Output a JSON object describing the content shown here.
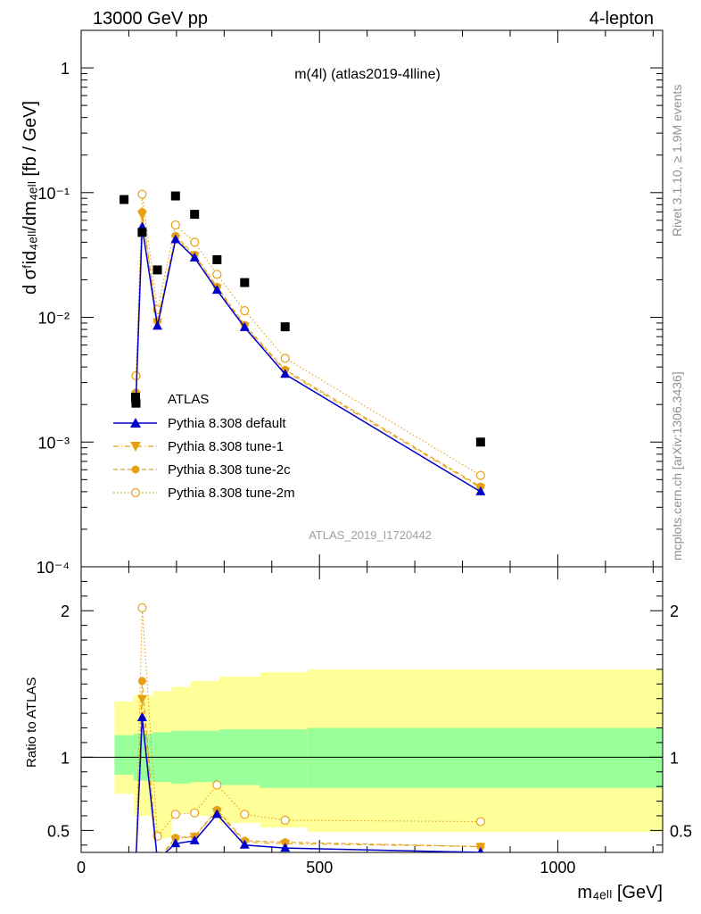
{
  "header": {
    "energy": "13000 GeV pp",
    "process": "4-lepton",
    "plot_title": "m(4l) (atlas2019-4lline)",
    "analysis_id": "ATLAS_2019_I1720442",
    "rivet_label": "Rivet 3.1.10, ≥ 1.9M events",
    "site_label": "mcplots.cern.ch [arXiv:1306.3436]"
  },
  "axes": {
    "ylabel_main": "d σᶠid₄ₑₗₗ/dm₄ₑₗₗ [fb / GeV]",
    "ylabel_ratio": "Ratio to ATLAS",
    "xlabel": "m₄ₑₗₗ [GeV]"
  },
  "colors": {
    "data": "#000000",
    "default": "#0000cc",
    "tune": "#e6a012",
    "band_inner": "#99ff99",
    "band_outer": "#ffff99"
  },
  "chart_data": [
    {
      "type": "scatter",
      "panel": "main",
      "y_scale": "log",
      "xlim": [
        0,
        1220
      ],
      "ylim": [
        0.0001,
        2
      ],
      "x_ticks": [
        0,
        500,
        1000
      ],
      "y_ticks": [
        "10⁻⁴",
        "10⁻³",
        "10⁻²",
        "10⁻¹",
        "1"
      ],
      "x": [
        90,
        115,
        128,
        160,
        198,
        238,
        285,
        343,
        428,
        838
      ],
      "series": [
        {
          "name": "ATLAS",
          "style": "data",
          "values": [
            0.088,
            0.00205,
            0.048,
            0.024,
            0.094,
            0.067,
            0.029,
            0.019,
            0.0084,
            0.001
          ]
        },
        {
          "name": "Pythia 8.308 default",
          "style": "solid-triangle",
          "values": [
            null,
            0.0022,
            0.053,
            0.0085,
            0.042,
            0.03,
            0.0165,
            0.0083,
            0.0035,
            0.0004
          ]
        },
        {
          "name": "Pythia 8.308 tune-1",
          "style": "dashdot-triangle-down",
          "values": [
            null,
            0.0024,
            0.067,
            0.0092,
            0.043,
            0.0312,
            0.0172,
            0.0085,
            0.0037,
            0.00043
          ]
        },
        {
          "name": "Pythia 8.308 tune-2c",
          "style": "dashed-circle",
          "values": [
            null,
            0.0025,
            0.07,
            0.0093,
            0.045,
            0.0318,
            0.0176,
            0.0087,
            0.0038,
            0.00044
          ]
        },
        {
          "name": "Pythia 8.308 tune-2m",
          "style": "dotted-open-circle",
          "values": [
            null,
            0.0034,
            0.097,
            0.0115,
            0.055,
            0.04,
            0.0221,
            0.0113,
            0.0047,
            0.00054
          ]
        }
      ]
    },
    {
      "type": "line",
      "panel": "ratio",
      "xlim": [
        0,
        1220
      ],
      "ylim": [
        0.35,
        2.3
      ],
      "y_ticks": [
        0.5,
        1,
        2
      ],
      "x": [
        115,
        128,
        160,
        198,
        238,
        285,
        343,
        428,
        838
      ],
      "series": [
        {
          "name": "Pythia 8.308 default",
          "values": [
            0.3,
            1.27,
            0.3,
            0.41,
            0.43,
            0.61,
            0.4,
            0.38,
            0.35
          ]
        },
        {
          "name": "Pythia 8.308 tune-1",
          "values": [
            0.3,
            1.4,
            0.3,
            0.44,
            0.46,
            0.63,
            0.42,
            0.41,
            0.39
          ]
        },
        {
          "name": "Pythia 8.308 tune-2c",
          "values": [
            0.3,
            1.52,
            0.3,
            0.45,
            0.46,
            0.64,
            0.43,
            0.42,
            0.39
          ]
        },
        {
          "name": "Pythia 8.308 tune-2m",
          "values": [
            0.3,
            2.02,
            0.46,
            0.61,
            0.62,
            0.81,
            0.61,
            0.57,
            0.56
          ]
        }
      ],
      "bands": {
        "edges": [
          70,
          110,
          150,
          190,
          230,
          290,
          375,
          475,
          1220
        ],
        "inner_lo": [
          0.88,
          0.84,
          0.83,
          0.82,
          0.83,
          0.81,
          0.79,
          0.79
        ],
        "inner_hi": [
          1.15,
          1.16,
          1.17,
          1.18,
          1.18,
          1.19,
          1.19,
          1.2
        ],
        "outer_lo": [
          0.75,
          0.6,
          0.45,
          0.62,
          0.6,
          0.55,
          0.52,
          0.49
        ],
        "outer_hi": [
          1.38,
          1.42,
          1.45,
          1.48,
          1.52,
          1.55,
          1.58,
          1.6
        ]
      }
    }
  ]
}
